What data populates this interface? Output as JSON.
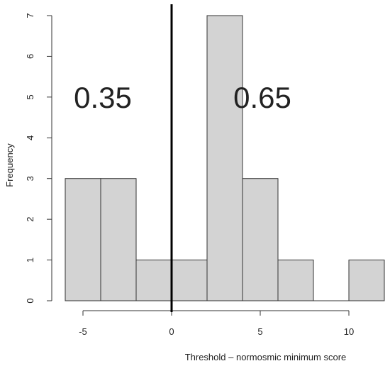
{
  "chart_data": {
    "type": "bar",
    "subtype": "histogram",
    "title": "",
    "xlabel": "Threshold – normosmic minimum score",
    "ylabel": "Frequency",
    "bins": [
      {
        "start": -6,
        "end": -4,
        "count": 3
      },
      {
        "start": -4,
        "end": -2,
        "count": 3
      },
      {
        "start": -2,
        "end": 0,
        "count": 1
      },
      {
        "start": 0,
        "end": 2,
        "count": 1
      },
      {
        "start": 2,
        "end": 4,
        "count": 7
      },
      {
        "start": 4,
        "end": 6,
        "count": 3
      },
      {
        "start": 6,
        "end": 8,
        "count": 1
      },
      {
        "start": 8,
        "end": 10,
        "count": 0
      },
      {
        "start": 10,
        "end": 12,
        "count": 1
      }
    ],
    "xlim": [
      -6,
      12
    ],
    "ylim": [
      0,
      7
    ],
    "x_ticks": [
      -5,
      0,
      5,
      10
    ],
    "y_ticks": [
      0,
      1,
      2,
      3,
      4,
      5,
      6,
      7
    ],
    "vertical_line_x": 0,
    "annotations": [
      {
        "text": "0.35",
        "x": -4,
        "y": 5
      },
      {
        "text": "0.65",
        "x": 5,
        "y": 5
      }
    ],
    "grid": false,
    "bar_color": "#d3d3d3",
    "edge_color": "#333333",
    "line_color": "#000000"
  }
}
